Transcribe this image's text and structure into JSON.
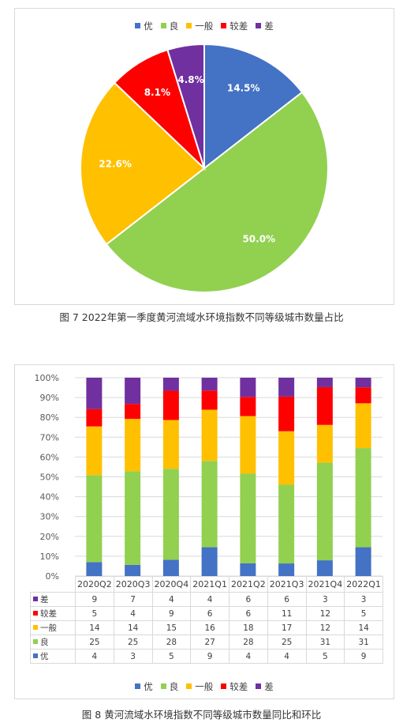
{
  "colors": {
    "优": "#4472C4",
    "良": "#92D050",
    "一般": "#FFC000",
    "较差": "#FF0000",
    "差": "#7030A0"
  },
  "chart_data": [
    {
      "type": "pie",
      "categories": [
        "优",
        "良",
        "一般",
        "较差",
        "差"
      ],
      "values": [
        14.5,
        50.0,
        22.6,
        8.1,
        4.8
      ],
      "labels": [
        "14.5%",
        "50.0%",
        "22.6%",
        "8.1%",
        "4.8%"
      ],
      "legend_position": "top",
      "caption": "图 7 2022年第一季度黄河流域水环境指数不同等级城市数量占比"
    },
    {
      "type": "bar",
      "stacked": "percent",
      "categories": [
        "2020Q2",
        "2020Q3",
        "2020Q4",
        "2021Q1",
        "2021Q2",
        "2021Q3",
        "2021Q4",
        "2022Q1"
      ],
      "series": [
        {
          "name": "优",
          "values": [
            4,
            3,
            5,
            9,
            4,
            4,
            5,
            9
          ]
        },
        {
          "name": "良",
          "values": [
            25,
            25,
            28,
            27,
            28,
            25,
            31,
            31
          ]
        },
        {
          "name": "一般",
          "values": [
            14,
            14,
            15,
            16,
            18,
            17,
            12,
            14
          ]
        },
        {
          "name": "较差",
          "values": [
            5,
            4,
            9,
            6,
            6,
            11,
            12,
            5
          ]
        },
        {
          "name": "差",
          "values": [
            9,
            7,
            4,
            4,
            6,
            6,
            3,
            3
          ]
        }
      ],
      "yticks": [
        "0%",
        "10%",
        "20%",
        "30%",
        "40%",
        "50%",
        "60%",
        "70%",
        "80%",
        "90%",
        "100%"
      ],
      "ylim": [
        0,
        100
      ],
      "grid": true,
      "legend_position": "bottom",
      "data_table": true,
      "caption": "图 8 黄河流域水环境指数不同等级城市数量同比和环比"
    }
  ]
}
